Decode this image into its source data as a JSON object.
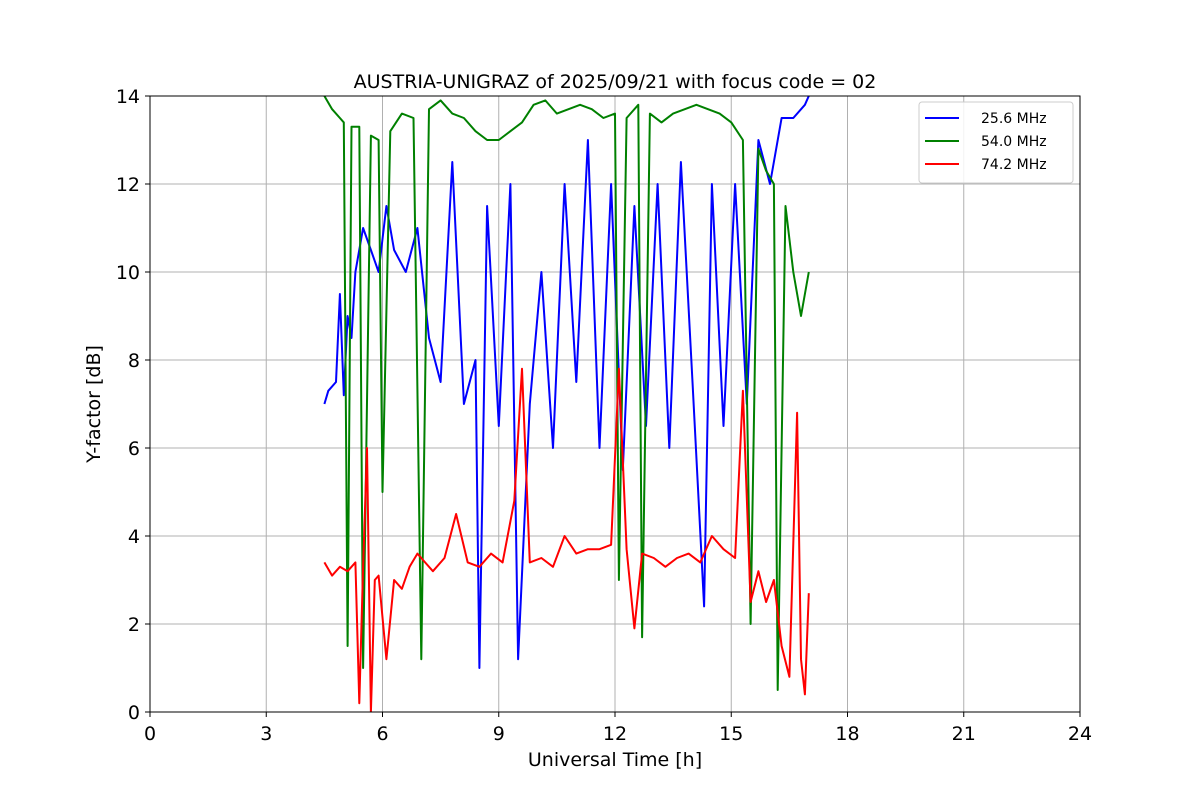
{
  "chart_data": {
    "type": "line",
    "title": "AUSTRIA-UNIGRAZ of 2025/09/21 with focus code = 02",
    "xlabel": "Universal Time [h]",
    "ylabel": "Y-factor [dB]",
    "xlim": [
      0,
      24
    ],
    "ylim": [
      0,
      14
    ],
    "xticks": [
      "0",
      "3",
      "6",
      "9",
      "12",
      "15",
      "18",
      "21",
      "24"
    ],
    "yticks": [
      "0",
      "2",
      "4",
      "6",
      "8",
      "10",
      "12",
      "14"
    ],
    "grid": true,
    "legend_position": "top-right",
    "series": [
      {
        "name": "25.6 MHz",
        "color": "#0000ff",
        "x": [
          4.5,
          4.6,
          4.8,
          4.9,
          5.0,
          5.1,
          5.2,
          5.3,
          5.5,
          5.7,
          5.9,
          6.1,
          6.3,
          6.6,
          6.9,
          7.2,
          7.5,
          7.8,
          8.1,
          8.4,
          8.5,
          8.7,
          9.0,
          9.3,
          9.5,
          9.8,
          10.1,
          10.4,
          10.7,
          11.0,
          11.3,
          11.6,
          11.9,
          12.2,
          12.5,
          12.8,
          13.1,
          13.4,
          13.7,
          14.0,
          14.3,
          14.5,
          14.8,
          15.1,
          15.4,
          15.7,
          16.0,
          16.3,
          16.6,
          16.9,
          17.0
        ],
        "y": [
          7.0,
          7.3,
          7.5,
          9.5,
          7.2,
          9.0,
          8.5,
          10.0,
          11.0,
          10.5,
          10.0,
          11.5,
          10.5,
          10.0,
          11.0,
          8.5,
          7.5,
          12.5,
          7.0,
          8.0,
          1.0,
          11.5,
          6.5,
          12.0,
          1.2,
          7.0,
          10.0,
          6.0,
          12.0,
          7.5,
          13.0,
          6.0,
          12.0,
          5.5,
          11.5,
          6.5,
          12.0,
          6.0,
          12.5,
          7.5,
          2.4,
          12.0,
          6.5,
          12.0,
          7.0,
          13.0,
          12.0,
          13.5,
          13.5,
          13.8,
          14.0
        ]
      },
      {
        "name": "54.0 MHz",
        "color": "#008000",
        "x": [
          4.5,
          4.7,
          4.9,
          5.0,
          5.1,
          5.2,
          5.4,
          5.5,
          5.7,
          5.9,
          6.0,
          6.2,
          6.5,
          6.8,
          7.0,
          7.2,
          7.5,
          7.8,
          8.1,
          8.4,
          8.7,
          9.0,
          9.3,
          9.6,
          9.9,
          10.2,
          10.5,
          10.8,
          11.1,
          11.4,
          11.7,
          12.0,
          12.1,
          12.3,
          12.6,
          12.7,
          12.9,
          13.2,
          13.5,
          13.8,
          14.1,
          14.4,
          14.7,
          15.0,
          15.3,
          15.5,
          15.7,
          15.9,
          16.1,
          16.2,
          16.4,
          16.6,
          16.8,
          17.0
        ],
        "y": [
          14.0,
          13.7,
          13.5,
          13.4,
          1.5,
          13.3,
          13.3,
          1.0,
          13.1,
          13.0,
          5.0,
          13.2,
          13.6,
          13.5,
          1.2,
          13.7,
          13.9,
          13.6,
          13.5,
          13.2,
          13.0,
          13.0,
          13.2,
          13.4,
          13.8,
          13.9,
          13.6,
          13.7,
          13.8,
          13.7,
          13.5,
          13.6,
          3.0,
          13.5,
          13.8,
          1.7,
          13.6,
          13.4,
          13.6,
          13.7,
          13.8,
          13.7,
          13.6,
          13.4,
          13.0,
          2.0,
          12.8,
          12.3,
          12.0,
          0.5,
          11.5,
          10.0,
          9.0,
          10.0
        ]
      },
      {
        "name": "74.2 MHz",
        "color": "#ff0000",
        "x": [
          4.5,
          4.7,
          4.9,
          5.1,
          5.3,
          5.4,
          5.5,
          5.6,
          5.7,
          5.8,
          5.9,
          6.1,
          6.3,
          6.5,
          6.7,
          6.9,
          7.1,
          7.3,
          7.6,
          7.9,
          8.2,
          8.5,
          8.8,
          9.1,
          9.4,
          9.6,
          9.8,
          10.1,
          10.4,
          10.7,
          11.0,
          11.3,
          11.6,
          11.9,
          12.1,
          12.3,
          12.5,
          12.7,
          13.0,
          13.3,
          13.6,
          13.9,
          14.2,
          14.5,
          14.8,
          15.1,
          15.3,
          15.5,
          15.7,
          15.9,
          16.1,
          16.3,
          16.5,
          16.7,
          16.8,
          16.9,
          17.0
        ],
        "y": [
          3.4,
          3.1,
          3.3,
          3.2,
          3.4,
          0.2,
          3.3,
          6.0,
          0.0,
          3.0,
          3.1,
          1.2,
          3.0,
          2.8,
          3.3,
          3.6,
          3.4,
          3.2,
          3.5,
          4.5,
          3.4,
          3.3,
          3.6,
          3.4,
          4.8,
          7.8,
          3.4,
          3.5,
          3.3,
          4.0,
          3.6,
          3.7,
          3.7,
          3.8,
          7.8,
          3.7,
          1.9,
          3.6,
          3.5,
          3.3,
          3.5,
          3.6,
          3.4,
          4.0,
          3.7,
          3.5,
          7.3,
          2.5,
          3.2,
          2.5,
          3.0,
          1.5,
          0.8,
          6.8,
          1.2,
          0.4,
          2.7
        ]
      }
    ]
  }
}
